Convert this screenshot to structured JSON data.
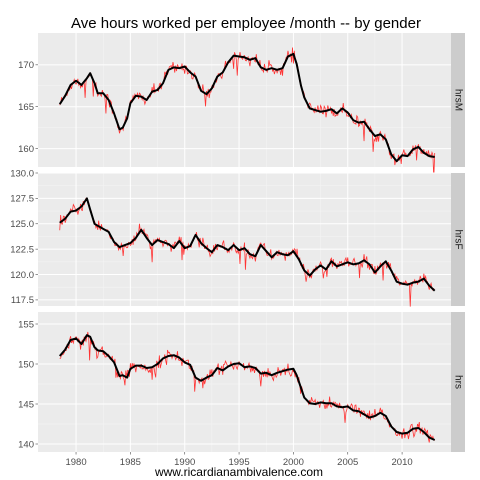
{
  "chart_data": {
    "type": "line",
    "title": "Ave hours worked per employee /month -- by gender",
    "caption": "www.ricardianambivalence.com",
    "x_ticks": [
      1980,
      1985,
      1990,
      1995,
      2000,
      2005,
      2010
    ],
    "xlim": [
      1976.5,
      2014.5
    ],
    "raw_color": "#ff3333",
    "smooth_color": "#000000",
    "panel_bg": "#ebebeb",
    "strip_bg": "#cccccc",
    "grid_color": "#ffffff",
    "panels": [
      {
        "strip": "hrsM",
        "ylim": [
          157.8,
          173.8
        ],
        "y_ticks": [
          160,
          165,
          170
        ],
        "smooth": [
          [
            1978.5,
            165.3
          ],
          [
            1979,
            166.3
          ],
          [
            1979.5,
            167.6
          ],
          [
            1980,
            168.1
          ],
          [
            1980.5,
            167.6
          ],
          [
            1981,
            168.4
          ],
          [
            1981.3,
            169.0
          ],
          [
            1981.7,
            167.8
          ],
          [
            1982,
            166.6
          ],
          [
            1982.5,
            166.6
          ],
          [
            1983,
            165.8
          ],
          [
            1983.5,
            164.2
          ],
          [
            1984,
            162.3
          ],
          [
            1984.3,
            162.5
          ],
          [
            1984.7,
            163.6
          ],
          [
            1985,
            165.4
          ],
          [
            1985.5,
            166.3
          ],
          [
            1986,
            166.2
          ],
          [
            1986.5,
            165.8
          ],
          [
            1987,
            166.8
          ],
          [
            1987.5,
            167.0
          ],
          [
            1988,
            167.8
          ],
          [
            1988.5,
            169.4
          ],
          [
            1989,
            169.7
          ],
          [
            1989.5,
            169.6
          ],
          [
            1990,
            169.8
          ],
          [
            1990.5,
            169.1
          ],
          [
            1991,
            168.6
          ],
          [
            1991.5,
            166.9
          ],
          [
            1992,
            166.5
          ],
          [
            1992.5,
            167.2
          ],
          [
            1993,
            168.6
          ],
          [
            1993.5,
            169.1
          ],
          [
            1994,
            170.3
          ],
          [
            1994.5,
            171.1
          ],
          [
            1995,
            171.0
          ],
          [
            1995.5,
            170.9
          ],
          [
            1996,
            170.6
          ],
          [
            1996.5,
            170.8
          ],
          [
            1997,
            169.7
          ],
          [
            1997.5,
            169.4
          ],
          [
            1998,
            169.6
          ],
          [
            1998.5,
            169.4
          ],
          [
            1999,
            169.6
          ],
          [
            1999.5,
            171.0
          ],
          [
            2000,
            171.3
          ],
          [
            2000.3,
            170.1
          ],
          [
            2000.7,
            167.5
          ],
          [
            2001,
            166.1
          ],
          [
            2001.5,
            164.8
          ],
          [
            2002,
            164.6
          ],
          [
            2002.5,
            164.4
          ],
          [
            2003,
            164.5
          ],
          [
            2003.5,
            164.7
          ],
          [
            2004,
            164.2
          ],
          [
            2004.5,
            164.8
          ],
          [
            2005,
            164.3
          ],
          [
            2005.5,
            163.4
          ],
          [
            2006,
            163.1
          ],
          [
            2006.5,
            163.2
          ],
          [
            2007,
            162.3
          ],
          [
            2007.5,
            161.5
          ],
          [
            2008,
            161.7
          ],
          [
            2008.5,
            161.1
          ],
          [
            2009,
            159.3
          ],
          [
            2009.5,
            158.5
          ],
          [
            2010,
            159.2
          ],
          [
            2010.5,
            159.1
          ],
          [
            2011,
            159.9
          ],
          [
            2011.5,
            160.2
          ],
          [
            2012,
            159.5
          ],
          [
            2012.5,
            159.1
          ],
          [
            2013,
            159.0
          ]
        ]
      },
      {
        "strip": "hrsF",
        "ylim": [
          116.9,
          130.0
        ],
        "y_ticks": [
          117.5,
          120.0,
          122.5,
          125.0,
          127.5,
          130.0
        ],
        "smooth": [
          [
            1978.5,
            125.1
          ],
          [
            1979,
            125.5
          ],
          [
            1979.5,
            126.2
          ],
          [
            1980,
            126.3
          ],
          [
            1980.5,
            126.7
          ],
          [
            1981,
            127.5
          ],
          [
            1981.3,
            126.4
          ],
          [
            1981.7,
            125.0
          ],
          [
            1982,
            124.8
          ],
          [
            1982.5,
            124.5
          ],
          [
            1983,
            124.2
          ],
          [
            1983.5,
            123.2
          ],
          [
            1984,
            122.7
          ],
          [
            1984.5,
            122.9
          ],
          [
            1985,
            123.1
          ],
          [
            1985.5,
            123.6
          ],
          [
            1986,
            124.4
          ],
          [
            1986.5,
            123.6
          ],
          [
            1987,
            122.9
          ],
          [
            1987.5,
            123.4
          ],
          [
            1988,
            123.2
          ],
          [
            1988.5,
            123.0
          ],
          [
            1989,
            122.6
          ],
          [
            1989.5,
            123.3
          ],
          [
            1990,
            122.6
          ],
          [
            1990.5,
            122.8
          ],
          [
            1991,
            123.9
          ],
          [
            1991.5,
            123.1
          ],
          [
            1992,
            122.6
          ],
          [
            1992.5,
            122.2
          ],
          [
            1993,
            122.9
          ],
          [
            1993.5,
            122.7
          ],
          [
            1994,
            122.4
          ],
          [
            1994.5,
            122.9
          ],
          [
            1995,
            122.4
          ],
          [
            1995.5,
            122.6
          ],
          [
            1996,
            122.0
          ],
          [
            1996.5,
            121.8
          ],
          [
            1997,
            122.9
          ],
          [
            1997.5,
            122.3
          ],
          [
            1998,
            121.7
          ],
          [
            1998.5,
            122.2
          ],
          [
            1999,
            122.0
          ],
          [
            1999.5,
            121.9
          ],
          [
            2000,
            122.3
          ],
          [
            2000.5,
            121.5
          ],
          [
            2001,
            120.4
          ],
          [
            2001.5,
            119.9
          ],
          [
            2002,
            120.5
          ],
          [
            2002.5,
            120.9
          ],
          [
            2003,
            120.5
          ],
          [
            2003.5,
            121.3
          ],
          [
            2004,
            120.8
          ],
          [
            2004.5,
            121.0
          ],
          [
            2005,
            121.2
          ],
          [
            2005.5,
            121.0
          ],
          [
            2006,
            121.1
          ],
          [
            2006.5,
            121.4
          ],
          [
            2007,
            121.0
          ],
          [
            2007.5,
            120.2
          ],
          [
            2008,
            120.8
          ],
          [
            2008.5,
            121.3
          ],
          [
            2009,
            120.4
          ],
          [
            2009.5,
            119.3
          ],
          [
            2010,
            119.1
          ],
          [
            2010.5,
            119.0
          ],
          [
            2011,
            119.2
          ],
          [
            2011.5,
            119.3
          ],
          [
            2012,
            119.6
          ],
          [
            2012.5,
            118.9
          ],
          [
            2013,
            118.4
          ]
        ]
      },
      {
        "strip": "hrs",
        "ylim": [
          139.0,
          156.5
        ],
        "y_ticks": [
          140,
          145,
          150,
          155
        ],
        "smooth": [
          [
            1978.5,
            151.0
          ],
          [
            1979,
            151.8
          ],
          [
            1979.5,
            153.0
          ],
          [
            1980,
            153.2
          ],
          [
            1980.5,
            152.5
          ],
          [
            1981,
            153.6
          ],
          [
            1981.3,
            153.4
          ],
          [
            1981.7,
            152.1
          ],
          [
            1982,
            151.7
          ],
          [
            1982.5,
            151.6
          ],
          [
            1983,
            151.0
          ],
          [
            1983.5,
            150.2
          ],
          [
            1984,
            148.5
          ],
          [
            1984.3,
            148.6
          ],
          [
            1984.7,
            148.3
          ],
          [
            1985,
            149.4
          ],
          [
            1985.5,
            149.8
          ],
          [
            1986,
            149.8
          ],
          [
            1986.5,
            149.5
          ],
          [
            1987,
            149.6
          ],
          [
            1987.5,
            150.0
          ],
          [
            1988,
            150.7
          ],
          [
            1988.5,
            151.0
          ],
          [
            1989,
            151.1
          ],
          [
            1989.5,
            150.8
          ],
          [
            1990,
            150.2
          ],
          [
            1990.5,
            149.9
          ],
          [
            1991,
            148.3
          ],
          [
            1991.5,
            147.9
          ],
          [
            1992,
            148.3
          ],
          [
            1992.5,
            148.6
          ],
          [
            1993,
            149.5
          ],
          [
            1993.5,
            149.2
          ],
          [
            1994,
            149.7
          ],
          [
            1994.5,
            150.0
          ],
          [
            1995,
            150.1
          ],
          [
            1995.5,
            149.6
          ],
          [
            1996,
            149.7
          ],
          [
            1996.5,
            149.5
          ],
          [
            1997,
            148.8
          ],
          [
            1997.5,
            148.9
          ],
          [
            1998,
            148.6
          ],
          [
            1998.5,
            148.9
          ],
          [
            1999,
            149.1
          ],
          [
            1999.5,
            149.3
          ],
          [
            2000,
            149.4
          ],
          [
            2000.3,
            148.6
          ],
          [
            2000.7,
            147.0
          ],
          [
            2001,
            145.8
          ],
          [
            2001.5,
            145.1
          ],
          [
            2002,
            145.0
          ],
          [
            2002.5,
            145.2
          ],
          [
            2003,
            145.1
          ],
          [
            2003.5,
            145.1
          ],
          [
            2004,
            144.7
          ],
          [
            2004.5,
            144.6
          ],
          [
            2005,
            144.7
          ],
          [
            2005.5,
            144.2
          ],
          [
            2006,
            144.1
          ],
          [
            2006.5,
            143.7
          ],
          [
            2007,
            143.3
          ],
          [
            2007.5,
            143.5
          ],
          [
            2008,
            143.9
          ],
          [
            2008.5,
            143.5
          ],
          [
            2009,
            142.2
          ],
          [
            2009.5,
            141.5
          ],
          [
            2010,
            141.3
          ],
          [
            2010.5,
            141.4
          ],
          [
            2011,
            141.9
          ],
          [
            2011.5,
            142.0
          ],
          [
            2012,
            141.5
          ],
          [
            2012.5,
            140.8
          ],
          [
            2013,
            140.5
          ]
        ]
      }
    ]
  }
}
